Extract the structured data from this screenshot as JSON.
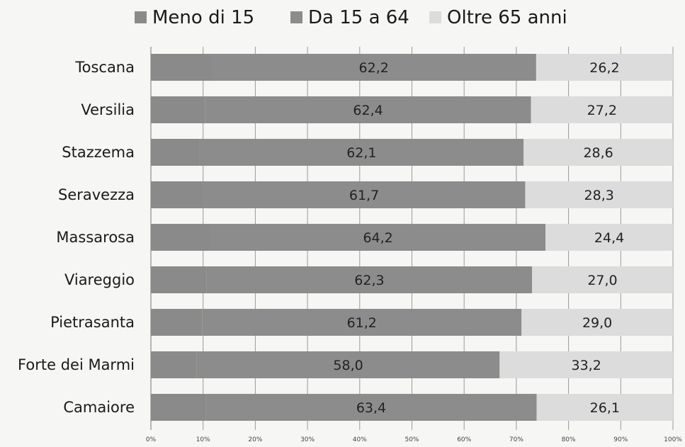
{
  "chart_data": {
    "type": "bar",
    "orientation": "horizontal",
    "stacked": true,
    "percent_stacked": true,
    "categories": [
      "Toscana",
      "Versilia",
      "Stazzema",
      "Seravezza",
      "Massarosa",
      "Viareggio",
      "Pietrasanta",
      "Forte dei Marmi",
      "Camaiore"
    ],
    "series": [
      {
        "name": "Meno di 15",
        "values": [
          11.6,
          10.4,
          9.3,
          10.0,
          11.4,
          10.7,
          9.8,
          8.8,
          10.5
        ],
        "color": "#8a8a8a"
      },
      {
        "name": "Da 15 a 64",
        "values": [
          62.2,
          62.4,
          62.1,
          61.7,
          64.2,
          62.3,
          61.2,
          58.0,
          63.4
        ],
        "color": "#8c8c8c",
        "labels": [
          "62,2",
          "62,4",
          "62,1",
          "61,7",
          "64,2",
          "62,3",
          "61,2",
          "58,0",
          "63,4"
        ]
      },
      {
        "name": "Oltre 65 anni",
        "values": [
          26.2,
          27.2,
          28.6,
          28.3,
          24.4,
          27.0,
          29.0,
          33.2,
          26.1
        ],
        "color": "#dcdcdc",
        "labels": [
          "26,2",
          "27,2",
          "28,6",
          "28,3",
          "24,4",
          "27,0",
          "29,0",
          "33,2",
          "26,1"
        ]
      }
    ],
    "x_ticks": [
      "0%",
      "10%",
      "20%",
      "30%",
      "40%",
      "50%",
      "60%",
      "70%",
      "80%",
      "90%",
      "100%"
    ],
    "xlim": [
      0,
      100
    ],
    "grid": true,
    "legend_position": "top"
  }
}
